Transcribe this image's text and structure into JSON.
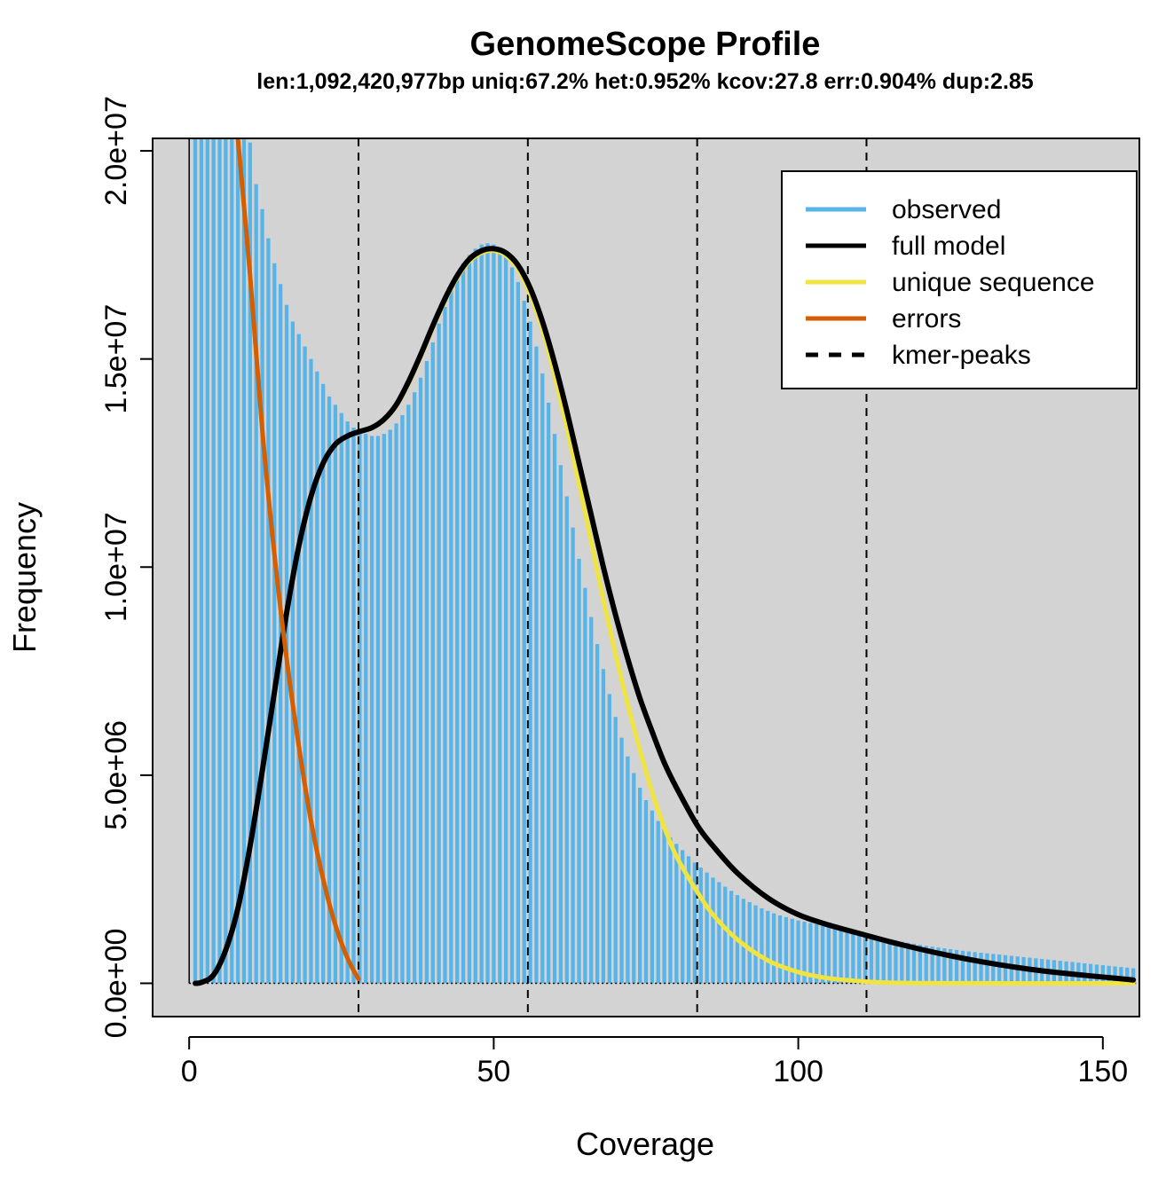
{
  "chart_data": {
    "type": "bar",
    "title": "GenomeScope Profile",
    "subtitle": "len:1,092,420,977bp uniq:67.2% het:0.952% kcov:27.8 err:0.904% dup:2.85",
    "xlabel": "Coverage",
    "ylabel": "Frequency",
    "xlim": [
      -6,
      156
    ],
    "ylim": [
      -800000,
      20300000
    ],
    "xticks": [
      0,
      50,
      100,
      150
    ],
    "xtick_labels": [
      "0",
      "50",
      "100",
      "150"
    ],
    "yticks": [
      0,
      5000000,
      10000000,
      15000000,
      20000000
    ],
    "ytick_labels": [
      "0.0e+00",
      "5.0e+06",
      "1.0e+07",
      "1.5e+07",
      "2.0e+07"
    ],
    "background": "#d3d3d3",
    "grid": false,
    "legend_position": "top-right",
    "legend": [
      {
        "label": "observed",
        "color": "#56b4e9",
        "style": "solid"
      },
      {
        "label": "full model",
        "color": "#000000",
        "style": "solid"
      },
      {
        "label": "unique sequence",
        "color": "#f0e442",
        "style": "solid"
      },
      {
        "label": "errors",
        "color": "#d55e00",
        "style": "solid"
      },
      {
        "label": "kmer-peaks",
        "color": "#000000",
        "style": "dashed"
      }
    ],
    "kmer_peaks": [
      27.8,
      55.6,
      83.4,
      111.2
    ],
    "observed": {
      "name": "observed",
      "color": "#56b4e9",
      "x": [
        1,
        2,
        3,
        4,
        5,
        6,
        7,
        8,
        9,
        10,
        11,
        12,
        13,
        14,
        15,
        16,
        17,
        18,
        19,
        20,
        21,
        22,
        23,
        24,
        25,
        26,
        27,
        28,
        29,
        30,
        31,
        32,
        33,
        34,
        35,
        36,
        37,
        38,
        39,
        40,
        41,
        42,
        43,
        44,
        45,
        46,
        47,
        48,
        49,
        50,
        51,
        52,
        53,
        54,
        55,
        56,
        57,
        58,
        59,
        60,
        61,
        62,
        63,
        64,
        65,
        66,
        67,
        68,
        69,
        70,
        71,
        72,
        73,
        74,
        75,
        76,
        77,
        78,
        79,
        80,
        81,
        82,
        83,
        84,
        85,
        86,
        87,
        88,
        89,
        90,
        91,
        92,
        93,
        94,
        95,
        96,
        97,
        98,
        99,
        100,
        101,
        102,
        103,
        104,
        105,
        106,
        107,
        108,
        109,
        110,
        111,
        112,
        113,
        114,
        115,
        116,
        117,
        118,
        119,
        120,
        121,
        122,
        123,
        124,
        125,
        126,
        127,
        128,
        129,
        130,
        131,
        132,
        133,
        134,
        135,
        136,
        137,
        138,
        139,
        140,
        141,
        142,
        143,
        144,
        145,
        146,
        147,
        148,
        149,
        150,
        151,
        152,
        153,
        154,
        155
      ],
      "values": [
        20300000,
        20300000,
        20300000,
        20300000,
        20300000,
        20300000,
        20300000,
        20300000,
        20300000,
        20200000,
        19200000,
        18600000,
        17900000,
        17300000,
        16800000,
        16300000,
        15900000,
        15600000,
        15300000,
        15000000,
        14700000,
        14400000,
        14100000,
        13900000,
        13700000,
        13500000,
        13350000,
        13250000,
        13200000,
        13150000,
        13150000,
        13200000,
        13300000,
        13450000,
        13650000,
        13900000,
        14200000,
        14550000,
        14950000,
        15400000,
        15850000,
        16250000,
        16650000,
        17000000,
        17300000,
        17500000,
        17650000,
        17750000,
        17780000,
        17750000,
        17650000,
        17450000,
        17200000,
        16850000,
        16400000,
        15900000,
        15300000,
        14650000,
        13950000,
        13200000,
        12450000,
        11700000,
        10950000,
        10200000,
        9500000,
        8800000,
        8150000,
        7550000,
        6950000,
        6400000,
        5900000,
        5450000,
        5050000,
        4700000,
        4400000,
        4150000,
        3900000,
        3700000,
        3500000,
        3350000,
        3200000,
        3050000,
        2900000,
        2780000,
        2660000,
        2540000,
        2430000,
        2320000,
        2220000,
        2120000,
        2030000,
        1950000,
        1870000,
        1800000,
        1740000,
        1680000,
        1630000,
        1590000,
        1550000,
        1510000,
        1480000,
        1450000,
        1420000,
        1390000,
        1360000,
        1330000,
        1300000,
        1270000,
        1240000,
        1210000,
        1180000,
        1150000,
        1120000,
        1090000,
        1060000,
        1030000,
        1000000,
        975000,
        950000,
        925000,
        900000,
        880000,
        860000,
        840000,
        820000,
        800000,
        780000,
        765000,
        750000,
        735000,
        720000,
        705000,
        690000,
        675000,
        660000,
        645000,
        630000,
        615000,
        600000,
        585000,
        570000,
        555000,
        540000,
        525000,
        510000,
        495000,
        480000,
        465000,
        450000,
        435000,
        420000,
        405000,
        390000,
        375000,
        360000
      ]
    },
    "lines": [
      {
        "name": "full model",
        "color": "#000000",
        "x": [
          1,
          2,
          4,
          6,
          8,
          10,
          12,
          14,
          16,
          18,
          20,
          22,
          24,
          26,
          27.8,
          30,
          32,
          34,
          36,
          38,
          40,
          42,
          44,
          46,
          48,
          50,
          52,
          54,
          56,
          58,
          60,
          62,
          64,
          66,
          68,
          70,
          72,
          74,
          76,
          78,
          80,
          83.4,
          86,
          90,
          95,
          100,
          105,
          111.2,
          115,
          120,
          125,
          130,
          135,
          140,
          145,
          150,
          155
        ],
        "y": [
          0,
          20000,
          200000,
          800000,
          1800000,
          3300000,
          5100000,
          7000000,
          8900000,
          10500000,
          11700000,
          12500000,
          12950000,
          13150000,
          13250000,
          13350000,
          13550000,
          13900000,
          14450000,
          15100000,
          15800000,
          16450000,
          17000000,
          17400000,
          17600000,
          17650000,
          17550000,
          17250000,
          16700000,
          15900000,
          14900000,
          13750000,
          12500000,
          11250000,
          10000000,
          8850000,
          7800000,
          6850000,
          6050000,
          5300000,
          4700000,
          3800000,
          3300000,
          2650000,
          2050000,
          1650000,
          1400000,
          1150000,
          1000000,
          820000,
          660000,
          520000,
          400000,
          300000,
          220000,
          150000,
          80000
        ]
      },
      {
        "name": "unique sequence",
        "color": "#f0e442",
        "x": [
          1,
          2,
          4,
          6,
          8,
          10,
          12,
          14,
          16,
          18,
          20,
          22,
          24,
          26,
          27.8,
          30,
          32,
          34,
          36,
          38,
          40,
          42,
          44,
          46,
          48,
          50,
          52,
          54,
          56,
          58,
          60,
          62,
          64,
          66,
          68,
          70,
          72,
          74,
          76,
          78,
          80,
          83.4,
          86,
          90,
          95,
          100,
          105,
          111.2,
          115,
          120,
          125,
          130,
          135,
          140,
          145,
          150,
          155
        ],
        "y": [
          0,
          20000,
          200000,
          800000,
          1800000,
          3300000,
          5100000,
          7000000,
          8900000,
          10500000,
          11700000,
          12500000,
          12950000,
          13150000,
          13250000,
          13340000,
          13530000,
          13870000,
          14400000,
          15050000,
          15750000,
          16400000,
          16950000,
          17350000,
          17550000,
          17600000,
          17480000,
          17150000,
          16550000,
          15700000,
          14600000,
          13350000,
          12000000,
          10600000,
          9200000,
          7900000,
          6700000,
          5600000,
          4600000,
          3750000,
          3050000,
          2200000,
          1650000,
          1050000,
          550000,
          270000,
          120000,
          40000,
          15000,
          5000,
          2000,
          1000,
          500,
          200,
          100,
          50,
          0
        ]
      },
      {
        "name": "errors",
        "color": "#d55e00",
        "x": [
          8,
          10,
          12,
          14,
          16,
          18,
          20,
          22,
          24,
          26,
          27.8
        ],
        "y": [
          20300000,
          17000000,
          13300000,
          10300000,
          7800000,
          5700000,
          3900000,
          2500000,
          1400000,
          600000,
          100000
        ]
      }
    ]
  }
}
